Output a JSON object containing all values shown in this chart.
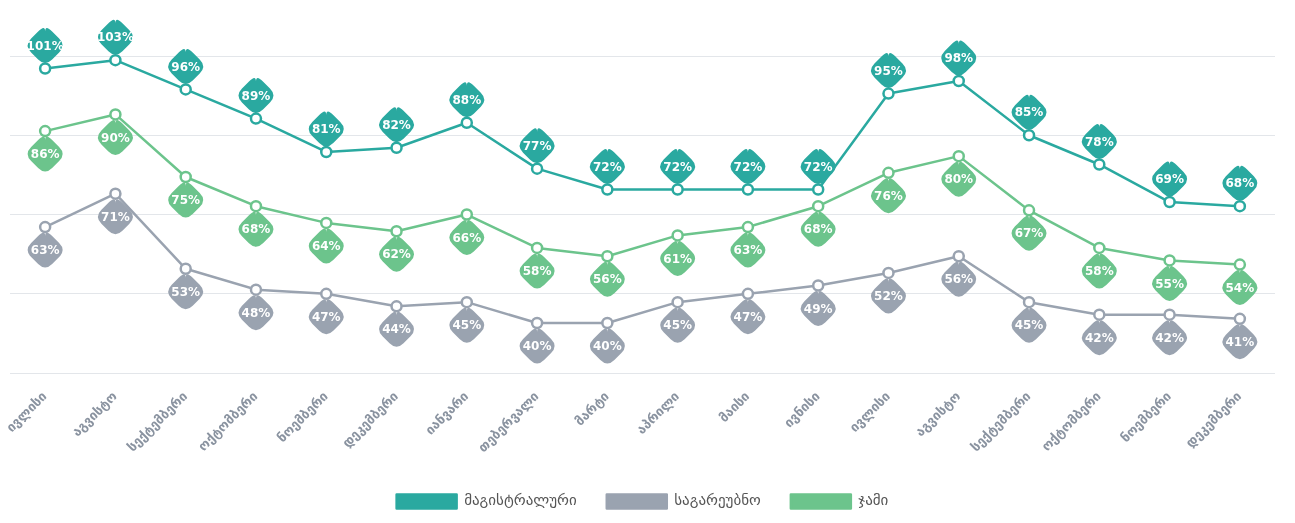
{
  "chart_data": {
    "type": "line",
    "categories": [
      "ივლისი",
      "აგვისტო",
      "სექტემბერი",
      "ოქტომბერი",
      "ნოემბერი",
      "დეკემბერი",
      "იანვარი",
      "თებერვალი",
      "მარტი",
      "აპრილი",
      "მაისი",
      "ივნისი",
      "ივლისი",
      "აგვისტო",
      "სექტემბერი",
      "ოქტომბერი",
      "ნოემბერი",
      "დეკემბერი"
    ],
    "series": [
      {
        "name": "მაგისტრალური",
        "color": "#2aa9a0",
        "values": [
          101,
          103,
          96,
          89,
          81,
          82,
          88,
          77,
          72,
          72,
          72,
          72,
          95,
          98,
          85,
          78,
          69,
          68
        ],
        "value_labels": [
          "101%",
          "103%",
          "96%",
          "89%",
          "81%",
          "82%",
          "88%",
          "77%",
          "72%",
          "72%",
          "72%",
          "72%",
          "95%",
          "98%",
          "85%",
          "78%",
          "69%",
          "68%"
        ]
      },
      {
        "name": "საგარეუბნო",
        "color": "#9aa3b0",
        "values": [
          63,
          71,
          53,
          48,
          47,
          44,
          45,
          40,
          40,
          45,
          47,
          49,
          52,
          56,
          45,
          42,
          42,
          41
        ],
        "value_labels": [
          "63%",
          "71%",
          "53%",
          "48%",
          "47%",
          "44%",
          "45%",
          "40%",
          "40%",
          "45%",
          "47%",
          "49%",
          "52%",
          "56%",
          "45%",
          "42%",
          "42%",
          "41%"
        ]
      },
      {
        "name": "ჯამი",
        "color": "#6cc48c",
        "values": [
          86,
          90,
          75,
          68,
          64,
          62,
          66,
          58,
          56,
          61,
          63,
          68,
          76,
          80,
          67,
          58,
          55,
          54
        ],
        "value_labels": [
          "86%",
          "90%",
          "75%",
          "68%",
          "64%",
          "62%",
          "66%",
          "58%",
          "56%",
          "61%",
          "63%",
          "68%",
          "76%",
          "80%",
          "67%",
          "58%",
          "55%",
          "54%"
        ]
      }
    ],
    "ylim": [
      28,
      104
    ],
    "yticks": [
      {
        "value": 28,
        "label": null
      },
      {
        "value": 47,
        "label": null
      },
      {
        "value": 66,
        "label": null
      },
      {
        "value": 85,
        "label": null
      },
      {
        "value": 104,
        "label": null
      }
    ],
    "grid": "y",
    "tick_labels": "x",
    "legend": "bottom",
    "marker": "circle",
    "line_style": "solid"
  }
}
